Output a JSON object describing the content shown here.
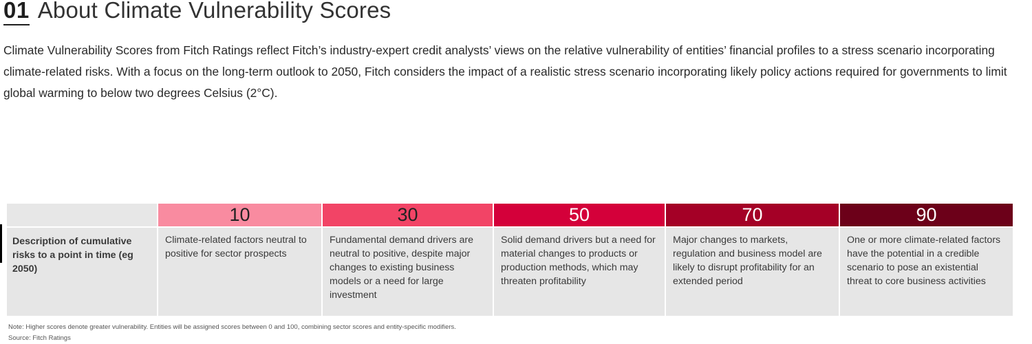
{
  "section": {
    "number": "01",
    "title": "About Climate Vulnerability Scores"
  },
  "intro": "Climate Vulnerability Scores from Fitch Ratings reflect Fitch’s industry-expert credit analysts’ views on the relative vulnerability of entities’ financial profiles to a stress scenario incorporating climate-related risks. With a focus on the long-term outlook to 2050, Fitch considers the impact of a realistic stress scenario incorporating likely policy actions required for governments to limit global warming to below two degrees Celsius (2°C).",
  "table": {
    "row_label": "Description of cumulative risks to a point in time (eg 2050)",
    "columns": [
      {
        "score": "10",
        "bg": "#f98ba0",
        "fg": "#222222",
        "description": "Climate-related factors neutral to positive for sector prospects"
      },
      {
        "score": "30",
        "bg": "#f24466",
        "fg": "#222222",
        "description": "Fundamental demand drivers are neutral to positive, despite major changes to existing business models or a need for large investment"
      },
      {
        "score": "50",
        "bg": "#d4003a",
        "fg": "#ffffff",
        "description": "Solid demand drivers but a need for material changes to products or production methods, which may threaten profitability"
      },
      {
        "score": "70",
        "bg": "#a40026",
        "fg": "#ffffff",
        "description": "Major changes to markets, regulation and business model are likely to disrupt profitability for an extended period"
      },
      {
        "score": "90",
        "bg": "#6c0019",
        "fg": "#ffffff",
        "description": "One or more climate-related factors have the potential in a credible scenario to pose an existential threat to core business activities"
      }
    ]
  },
  "note": "Note: Higher scores denote greater vulnerability. Entities will be assigned scores between 0 and 100, combining sector scores and entity-specific modifiers.",
  "source": "Source: Fitch Ratings"
}
